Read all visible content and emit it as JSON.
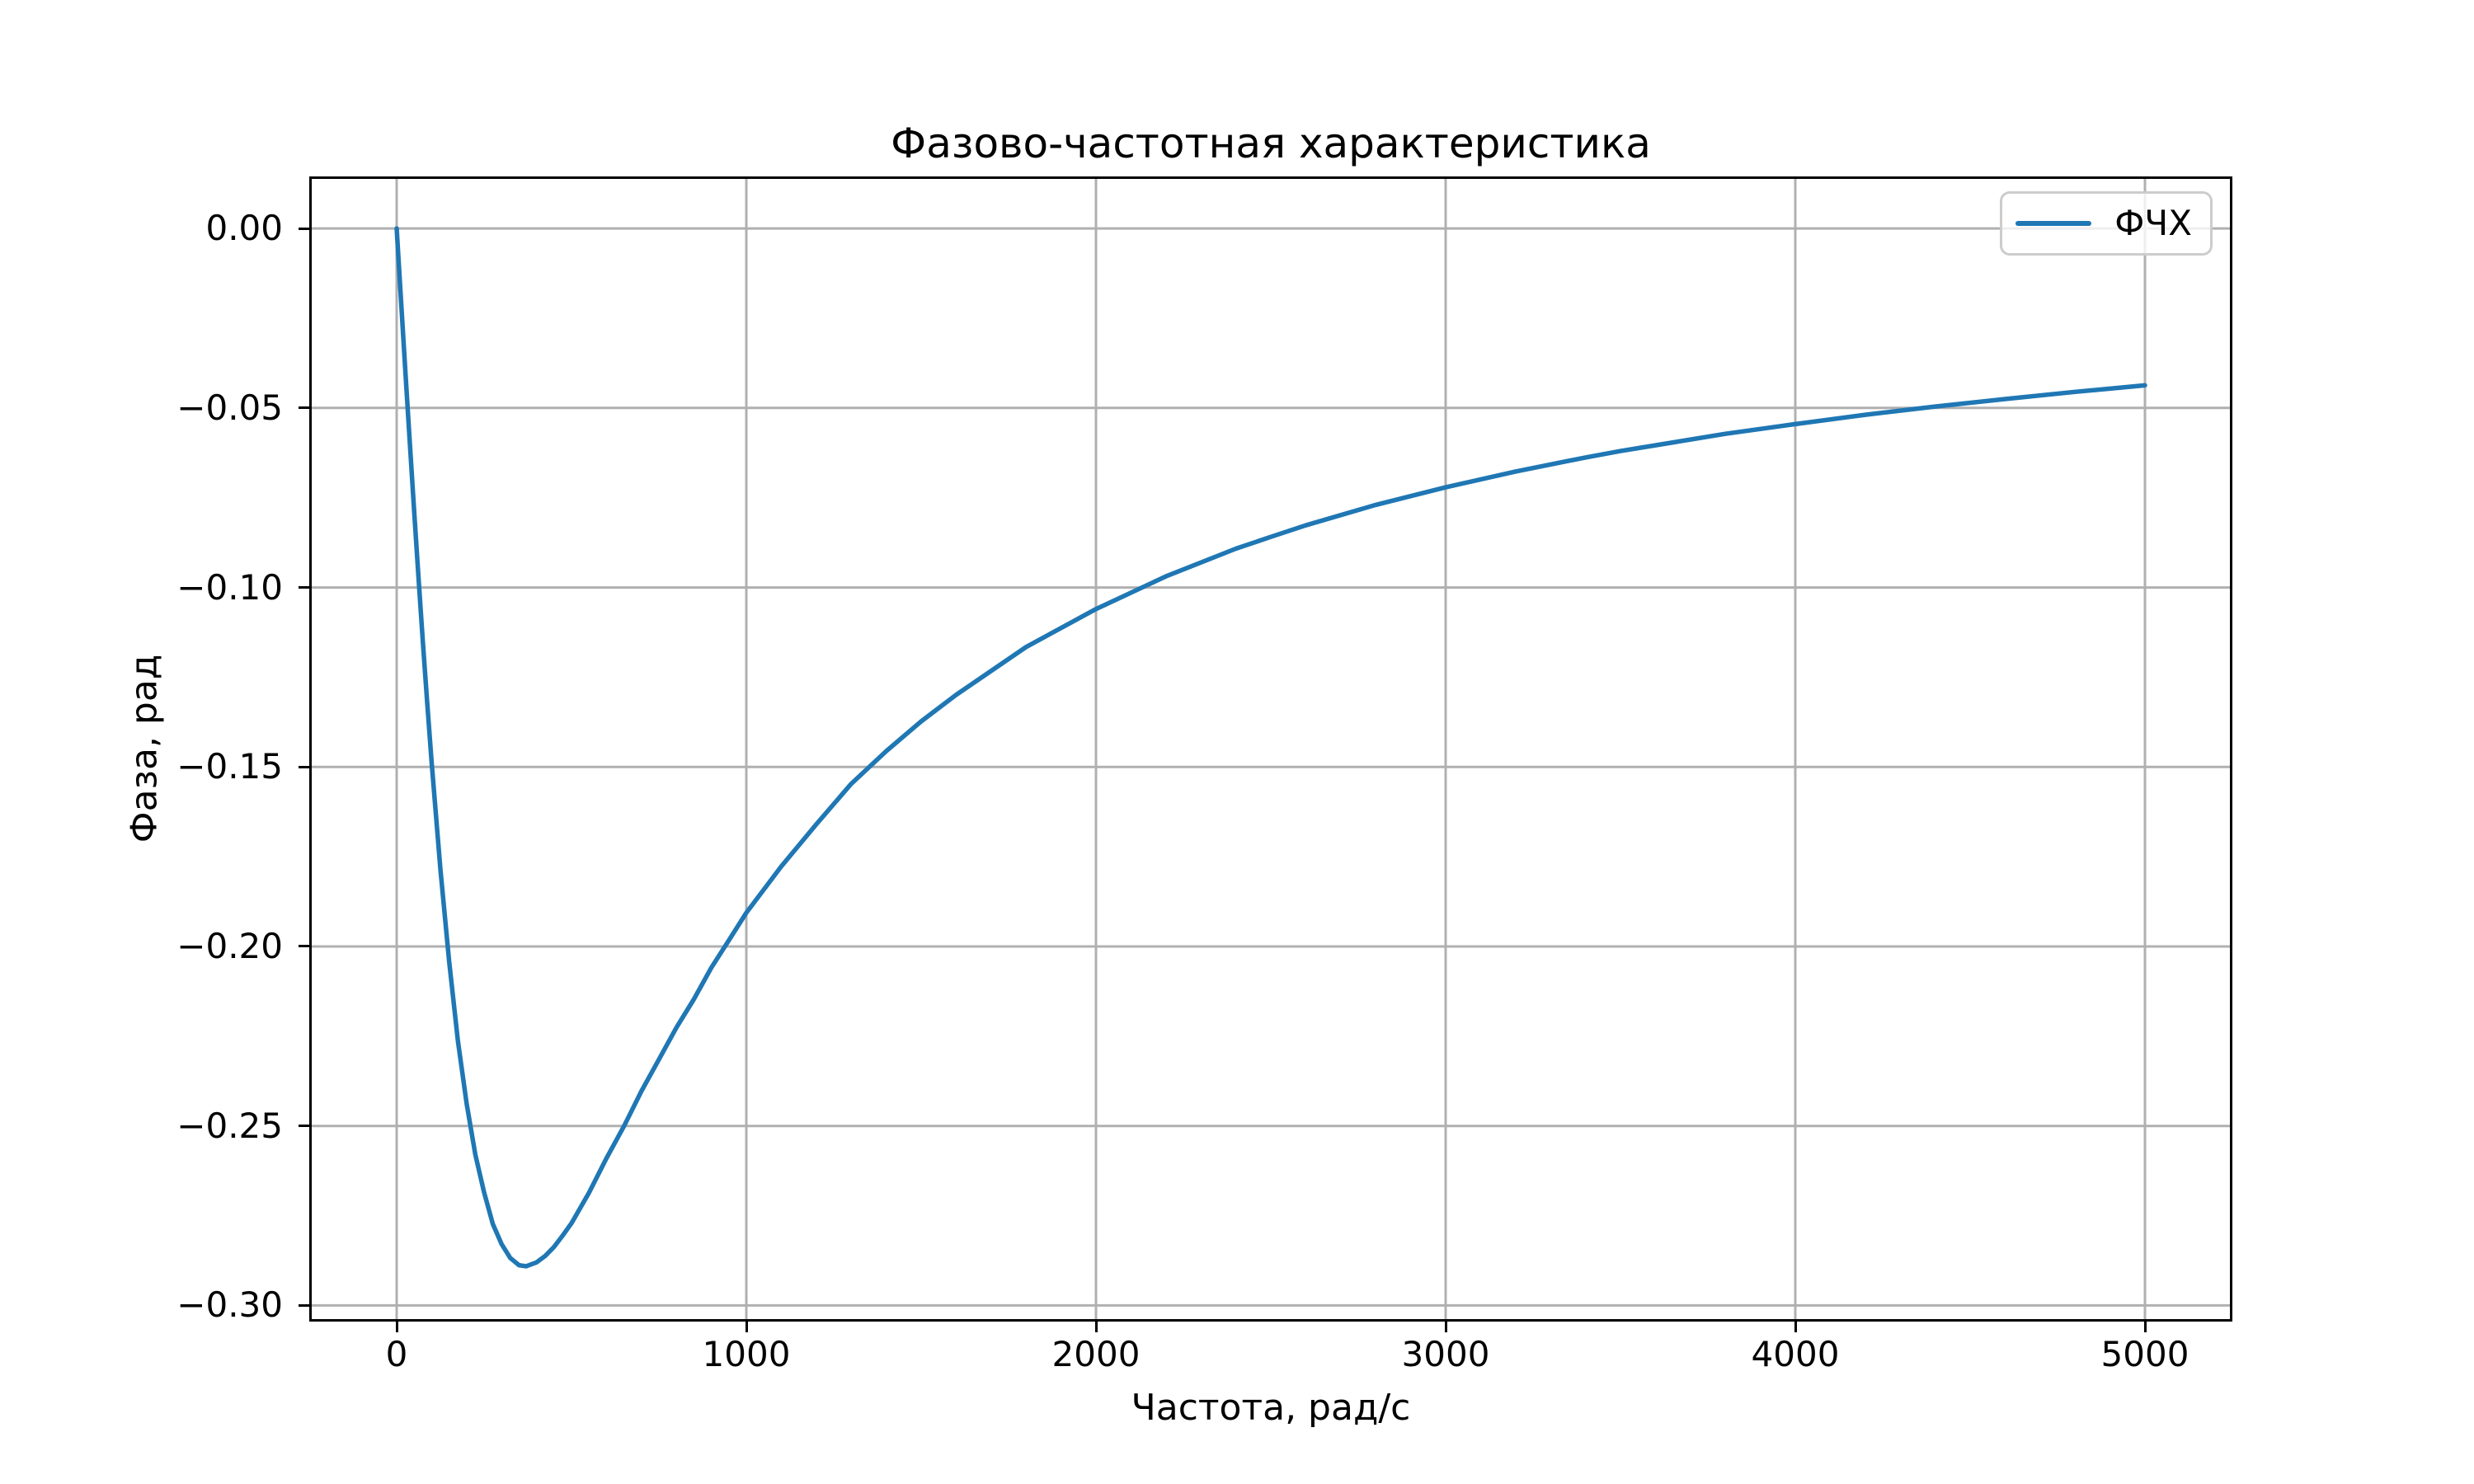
{
  "figure": {
    "title": "Фазово-частотная характеристика",
    "xlabel": "Частота, рад/с",
    "ylabel": "Фаза, рад",
    "legend": {
      "entries": [
        {
          "label": "ФЧХ",
          "color": "#1f77b4"
        }
      ],
      "position": "upper right"
    }
  },
  "colors": {
    "background": "#ffffff",
    "line": "#1f77b4",
    "grid": "#b0b0b0",
    "spine": "#000000",
    "text": "#000000",
    "legend_border": "#cccccc"
  },
  "chart_data": {
    "type": "line",
    "title": "Фазово-частотная характеристика",
    "xlabel": "Частота, рад/с",
    "ylabel": "Фаза, рад",
    "xlim": [
      -250,
      5250
    ],
    "ylim": [
      -0.3045,
      0.0145
    ],
    "xticks": [
      0,
      1000,
      2000,
      3000,
      4000,
      5000
    ],
    "yticks": [
      0.0,
      -0.05,
      -0.1,
      -0.15,
      -0.2,
      -0.25,
      -0.3
    ],
    "grid": true,
    "legend_position": "upper right",
    "series": [
      {
        "name": "ФЧХ",
        "color": "#1f77b4",
        "x": [
          0,
          12,
          25,
          37,
          50,
          62,
          75,
          87,
          100,
          125,
          150,
          175,
          200,
          225,
          250,
          275,
          300,
          325,
          350,
          370,
          400,
          425,
          450,
          475,
          500,
          550,
          600,
          650,
          700,
          750,
          800,
          850,
          900,
          950,
          1000,
          1100,
          1200,
          1300,
          1400,
          1500,
          1600,
          1800,
          2000,
          2200,
          2400,
          2500,
          2600,
          2800,
          3000,
          3200,
          3400,
          3500,
          3600,
          3800,
          4000,
          4200,
          4400,
          4600,
          4800,
          5000
        ],
        "y": [
          0.0,
          -0.0193,
          -0.04,
          -0.0588,
          -0.0787,
          -0.0966,
          -0.1153,
          -0.1317,
          -0.1487,
          -0.1784,
          -0.2041,
          -0.2262,
          -0.2437,
          -0.258,
          -0.2685,
          -0.2773,
          -0.2829,
          -0.2868,
          -0.2888,
          -0.2891,
          -0.288,
          -0.2862,
          -0.2837,
          -0.2805,
          -0.2771,
          -0.2686,
          -0.259,
          -0.2501,
          -0.2403,
          -0.2315,
          -0.2226,
          -0.2147,
          -0.2059,
          -0.1983,
          -0.1906,
          -0.1777,
          -0.166,
          -0.1547,
          -0.1456,
          -0.1373,
          -0.1299,
          -0.1166,
          -0.106,
          -0.0969,
          -0.0892,
          -0.0859,
          -0.0827,
          -0.077,
          -0.0721,
          -0.0677,
          -0.0638,
          -0.062,
          -0.0604,
          -0.0572,
          -0.0545,
          -0.0519,
          -0.0496,
          -0.0475,
          -0.0455,
          -0.0437
        ]
      }
    ]
  }
}
